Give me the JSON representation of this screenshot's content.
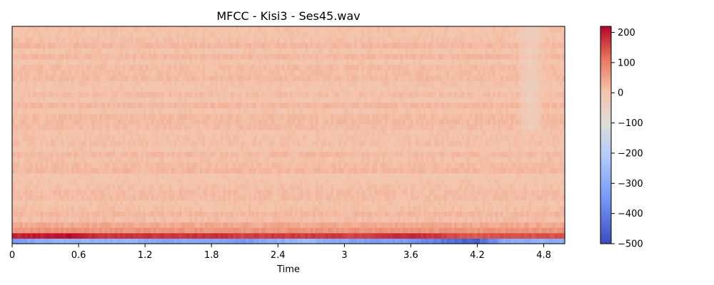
{
  "chart_data": {
    "type": "heatmap",
    "title": "MFCC - Kisi3 - Ses45.wav",
    "xlabel": "Time",
    "ylabel": "",
    "x_unit": "seconds",
    "xlim": [
      0,
      4.99
    ],
    "x_ticks": [
      "0",
      "0.6",
      "1.2",
      "1.8",
      "2.4",
      "3",
      "3.6",
      "4.2",
      "4.8"
    ],
    "y_ticks": [],
    "colormap": "coolwarm",
    "colorbar": {
      "range": [
        -500,
        220
      ],
      "ticks": [
        "200",
        "100",
        "0",
        "−100",
        "−200",
        "−300",
        "−400",
        "−500"
      ],
      "tick_values": [
        200,
        100,
        0,
        -100,
        -200,
        -300,
        -400,
        -500
      ]
    },
    "n_coefficients": 40,
    "n_frames": 215,
    "coefficient_profiles": {
      "c0_start_to_end": [
        -330,
        -300,
        -280,
        -290,
        -270,
        -320,
        -300,
        -310,
        -340,
        -300,
        -260,
        -290,
        -330,
        -320,
        -360,
        -420,
        -460,
        -300,
        -290,
        -300
      ],
      "c1_start_to_end": [
        190,
        200,
        210,
        170,
        180,
        175,
        170,
        180,
        160,
        170,
        165,
        170,
        160,
        185,
        180,
        160,
        140,
        150,
        145,
        150
      ],
      "c2_approx": 70,
      "c3_approx": 40,
      "higher_coefficients_approx": 10
    },
    "annotations": []
  }
}
